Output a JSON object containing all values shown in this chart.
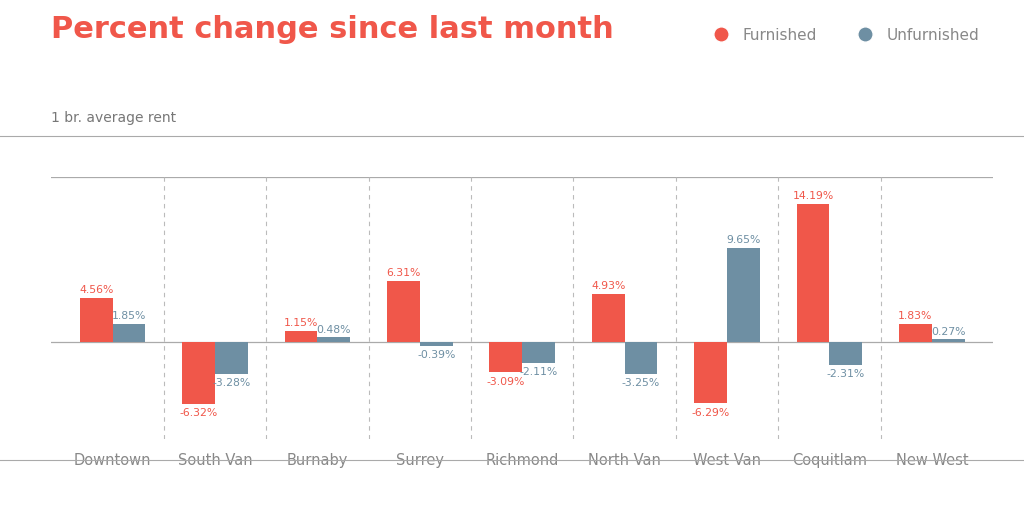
{
  "categories": [
    "Downtown",
    "South Van",
    "Burnaby",
    "Surrey",
    "Richmond",
    "North Van",
    "West Van",
    "Coquitlam",
    "New West"
  ],
  "furnished": [
    4.56,
    -6.32,
    1.15,
    6.31,
    -3.09,
    4.93,
    -6.29,
    14.19,
    1.83
  ],
  "unfurnished": [
    1.85,
    -3.28,
    0.48,
    -0.39,
    -2.11,
    -3.25,
    9.65,
    -2.31,
    0.27
  ],
  "furnished_color": "#f0574a",
  "unfurnished_color": "#6e8fa3",
  "title": "Percent change since last month",
  "subtitle": "1 br. average rent",
  "title_color": "#f0574a",
  "subtitle_color": "#777777",
  "label_color_furnished": "#f0574a",
  "label_color_unfurnished": "#6e8fa3",
  "background_color": "#ffffff",
  "bar_width": 0.32,
  "ylim": [
    -10,
    17
  ],
  "legend_furnished": "Furnished",
  "legend_unfurnished": "Unfurnished",
  "grid_color": "#bbbbbb",
  "axis_color": "#aaaaaa",
  "tick_label_color": "#888888",
  "top_border_color": "#aaaaaa",
  "title_fontsize": 22,
  "subtitle_fontsize": 10,
  "label_fontsize": 7.8,
  "xtick_fontsize": 10.5
}
